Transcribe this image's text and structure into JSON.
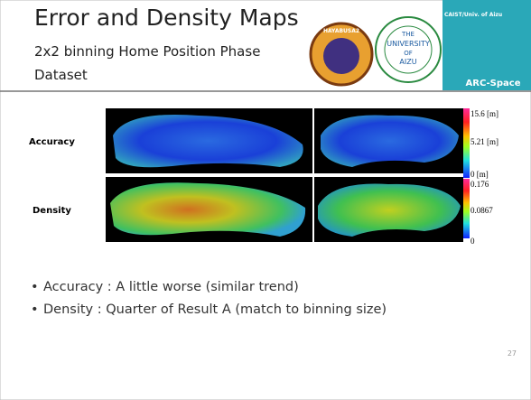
{
  "header": {
    "title": "Error and Density Maps",
    "subtitle_lines": [
      "2x2 binning Home Position Phase",
      "Dataset"
    ]
  },
  "logos": {
    "mission": "HAYABUSA2",
    "university": [
      "THE",
      "UNIVERSITY",
      "OF",
      "AIZU"
    ],
    "lab": "CAIST/Univ. of Aizu",
    "group": "ARC-Space"
  },
  "rows": [
    {
      "label": "Accuracy",
      "scale": [
        "15.6 [m]",
        "5.21 [m]",
        "0 [m]"
      ]
    },
    {
      "label": "Density",
      "scale": [
        "0.176",
        "0.0867",
        "0"
      ]
    }
  ],
  "bullets": [
    "Accuracy : A little worse (similar trend)",
    "Density : Quarter of Result A (match to binning size)"
  ],
  "page_number": "27"
}
